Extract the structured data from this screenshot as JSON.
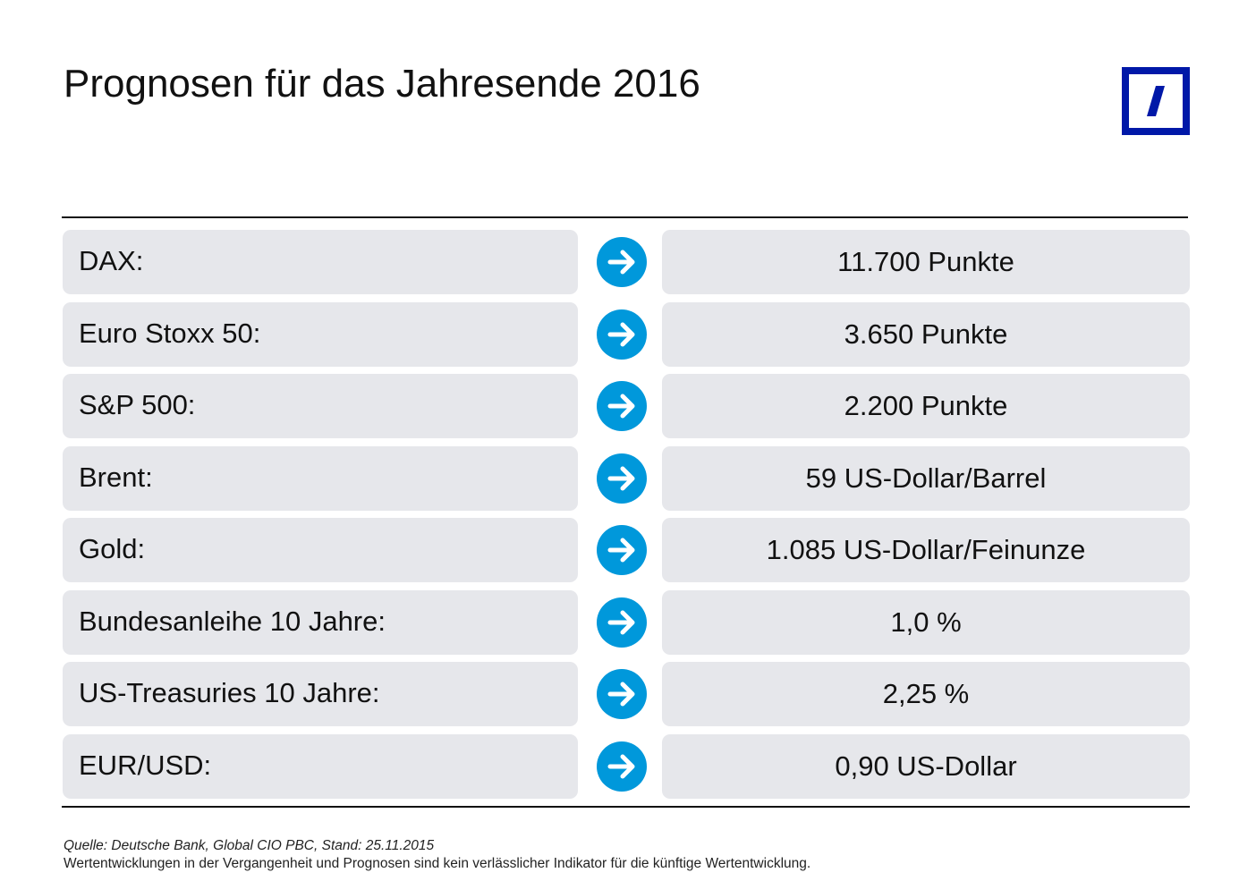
{
  "title": "Prognosen für das Jahresende 2016",
  "brand": {
    "logo_icon": "deutsche-bank-logo-icon",
    "color": "#0018a8"
  },
  "colors": {
    "row_background": "#e6e7eb",
    "arrow_background": "#0098db",
    "text": "#111111"
  },
  "forecasts": [
    {
      "label": "DAX:",
      "value": "11.700 Punkte"
    },
    {
      "label": "Euro Stoxx 50:",
      "value": "3.650 Punkte"
    },
    {
      "label": "S&P 500:",
      "value": "2.200 Punkte"
    },
    {
      "label": "Brent:",
      "value": "59 US-Dollar/Barrel"
    },
    {
      "label": "Gold:",
      "value": "1.085 US-Dollar/Feinunze"
    },
    {
      "label": "Bundesanleihe 10 Jahre:",
      "value": "1,0 %"
    },
    {
      "label": "US-Treasuries 10 Jahre:",
      "value": "2,25 %"
    },
    {
      "label": "EUR/USD:",
      "value": "0,90 US-Dollar"
    }
  ],
  "arrow_icon": "arrow-right-circle-icon",
  "footer": {
    "source": "Quelle: Deutsche Bank, Global CIO PBC, Stand: 25.11.2015",
    "disclaimer": "Wertentwicklungen in der Vergangenheit und Prognosen sind kein verlässlicher Indikator für die künftige Wertentwicklung."
  }
}
